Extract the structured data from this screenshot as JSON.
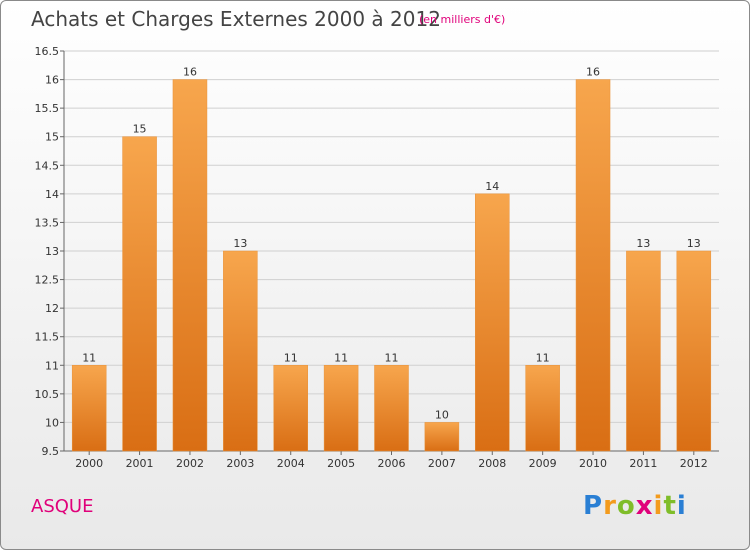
{
  "header": {
    "title": "Achats et Charges Externes 2000 à 2012",
    "subtitle": "(en milliers d'€)"
  },
  "footer": {
    "place": "ASQUE",
    "logo": "Proxiti"
  },
  "colors": {
    "bar_top": "#f7a64d",
    "bar_bottom": "#d96e14",
    "title": "#444444",
    "accent": "#e0007a"
  },
  "chart_data": {
    "type": "bar",
    "title": "Achats et Charges Externes 2000 à 2012",
    "subtitle": "(en milliers d'€)",
    "categories": [
      "2000",
      "2001",
      "2002",
      "2003",
      "2004",
      "2005",
      "2006",
      "2007",
      "2008",
      "2009",
      "2010",
      "2011",
      "2012"
    ],
    "values": [
      11,
      15,
      16,
      13,
      11,
      11,
      11,
      10,
      14,
      11,
      16,
      13,
      13
    ],
    "value_labels": [
      "11",
      "15",
      "16",
      "13",
      "11",
      "11",
      "11",
      "10",
      "14",
      "11",
      "16",
      "13",
      "13"
    ],
    "ylim": [
      9.5,
      16.5
    ],
    "yticks": [
      9.5,
      10,
      10.5,
      11,
      11.5,
      12,
      12.5,
      13,
      13.5,
      14,
      14.5,
      15,
      15.5,
      16,
      16.5
    ],
    "ytick_labels": [
      "9.5",
      "10",
      "10.5",
      "11",
      "11.5",
      "12",
      "12.5",
      "13",
      "13.5",
      "14",
      "14.5",
      "15",
      "15.5",
      "16",
      "16.5"
    ],
    "grid": true,
    "xlabel": "",
    "ylabel": ""
  }
}
